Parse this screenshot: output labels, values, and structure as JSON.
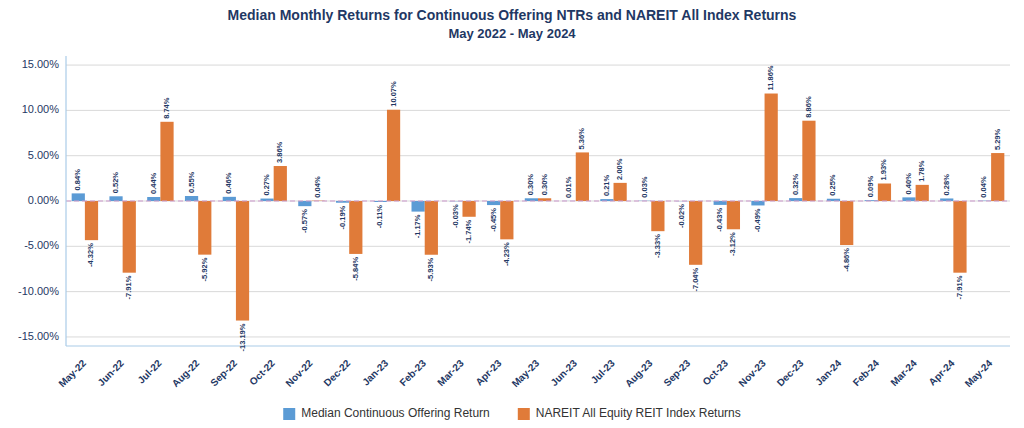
{
  "chart_data": {
    "type": "bar",
    "title": "Median Monthly Returns for Continuous Offering NTRs and NAREIT All Index Returns",
    "subtitle": "May 2022 - May 2024",
    "categories": [
      "May-22",
      "Jun-22",
      "Jul-22",
      "Aug-22",
      "Sep-22",
      "Oct-22",
      "Nov-22",
      "Dec-22",
      "Jan-23",
      "Feb-23",
      "Mar-23",
      "Apr-23",
      "May-23",
      "Jun-23",
      "Jul-23",
      "Aug-23",
      "Sep-23",
      "Oct-23",
      "Nov-23",
      "Dec-23",
      "Jan-24",
      "Feb-24",
      "Mar-24",
      "Apr-24",
      "May-24"
    ],
    "series": [
      {
        "name": "Median Continuous Offering Return",
        "color": "#5b9bd5",
        "values": [
          0.84,
          0.52,
          0.44,
          0.55,
          0.46,
          0.27,
          -0.57,
          -0.19,
          -0.11,
          -1.17,
          -0.03,
          -0.45,
          0.3,
          0.01,
          0.21,
          0.03,
          -0.02,
          -0.43,
          -0.49,
          0.32,
          0.25,
          0.09,
          0.4,
          0.28,
          0.04
        ],
        "value_labels": [
          "0.84%",
          "0.52%",
          "0.44%",
          "0.55%",
          "0.46%",
          "0.27%",
          "-0.57%",
          "-0.19%",
          "-0.11%",
          "-1.17%",
          "-0.03%",
          "-0.45%",
          "0.30%",
          "0.01%",
          "0.21%",
          "0.03%",
          "-0.02%",
          "-0.43%",
          "-0.49%",
          "0.32%",
          "0.25%",
          "0.09%",
          "0.40%",
          "0.28%",
          "0.04%"
        ]
      },
      {
        "name": "NAREIT All Equity REIT Index Returns",
        "color": "#e07b39",
        "values": [
          -4.32,
          -7.91,
          8.74,
          -5.92,
          -13.19,
          3.86,
          0.04,
          -5.84,
          10.07,
          -5.93,
          -1.74,
          -4.23,
          0.3,
          5.36,
          2.0,
          -3.33,
          -7.04,
          -3.12,
          11.86,
          8.86,
          -4.86,
          1.93,
          1.78,
          -7.91,
          5.29
        ],
        "value_labels": [
          "-4.32%",
          "-7.91%",
          "8.74%",
          "-5.92%",
          "-13.19%",
          "3.86%",
          "0.04%",
          "-5.84%",
          "10.07%",
          "-5.93%",
          "-1.74%",
          "-4.23%",
          "0.30%",
          "5.36%",
          "2.00%",
          "-3.33%",
          "-7.04%",
          "-3.12%",
          "11.86%",
          "8.86%",
          "-4.86%",
          "1.93%",
          "1.78%",
          "-7.91%",
          "5.29%"
        ]
      }
    ],
    "ylim": [
      -16,
      16
    ],
    "yticks": [
      {
        "value": -15,
        "label": "-15.00%"
      },
      {
        "value": -10,
        "label": "-10.00%"
      },
      {
        "value": -5,
        "label": "-5.00%"
      },
      {
        "value": 0,
        "label": "0.00%"
      },
      {
        "value": 5,
        "label": "5.00%"
      },
      {
        "value": 10,
        "label": "10.00%"
      },
      {
        "value": 15,
        "label": "15.00%"
      }
    ],
    "grid": true,
    "legend": "bottom",
    "data_labels": true
  }
}
